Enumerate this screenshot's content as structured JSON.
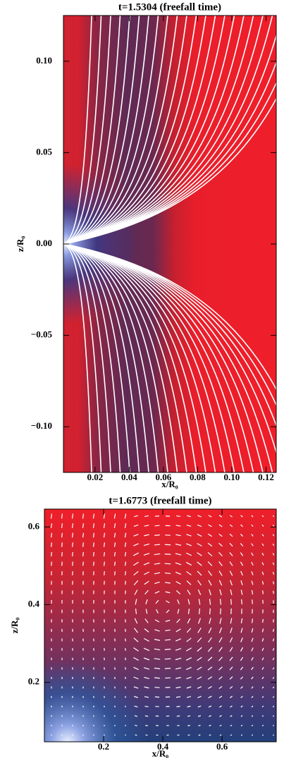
{
  "chart_data": [
    {
      "type": "heatmap",
      "title": "t=1.5304 (freefall time)",
      "x_label": "x/R₀",
      "y_label": "z/R₀",
      "xlim": [
        0.0015,
        0.126
      ],
      "ylim": [
        -0.125,
        0.125
      ],
      "xticks": [
        0.02,
        0.04,
        0.06,
        0.08,
        {
          "value": 0.1,
          "label": "0.10"
        },
        0.12
      ],
      "yticks": [
        {
          "value": -0.1,
          "label": "−0.10"
        },
        {
          "value": -0.05,
          "label": "−0.05"
        },
        {
          "value": 0,
          "label": "0.00"
        },
        {
          "value": 0.05,
          "label": "0.05"
        },
        {
          "value": 0.1,
          "label": "0.10"
        }
      ]
    },
    {
      "type": "quiver",
      "title": "t=1.6773 (freefall time)",
      "x_label": "x/R₀",
      "y_label": "z/R₀",
      "xlim": [
        0,
        0.783
      ],
      "ylim": [
        0.047,
        0.646
      ],
      "xticks": [
        0.2,
        0.4,
        0.6
      ],
      "yticks": [
        0.2,
        0.4,
        0.6
      ]
    }
  ]
}
